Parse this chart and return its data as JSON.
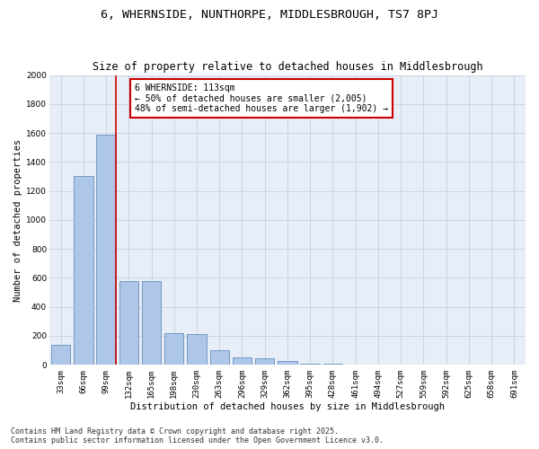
{
  "title": "6, WHERNSIDE, NUNTHORPE, MIDDLESBROUGH, TS7 8PJ",
  "subtitle": "Size of property relative to detached houses in Middlesbrough",
  "xlabel": "Distribution of detached houses by size in Middlesbrough",
  "ylabel": "Number of detached properties",
  "categories": [
    "33sqm",
    "66sqm",
    "99sqm",
    "132sqm",
    "165sqm",
    "198sqm",
    "230sqm",
    "263sqm",
    "296sqm",
    "329sqm",
    "362sqm",
    "395sqm",
    "428sqm",
    "461sqm",
    "494sqm",
    "527sqm",
    "559sqm",
    "592sqm",
    "625sqm",
    "658sqm",
    "691sqm"
  ],
  "values": [
    140,
    1300,
    1590,
    580,
    580,
    220,
    215,
    100,
    50,
    45,
    25,
    10,
    10,
    0,
    0,
    0,
    0,
    0,
    0,
    0,
    0
  ],
  "bar_color": "#aec6e8",
  "bar_edge_color": "#5080b0",
  "vline_color": "#cc0000",
  "annotation_text": "6 WHERNSIDE: 113sqm\n← 50% of detached houses are smaller (2,005)\n48% of semi-detached houses are larger (1,902) →",
  "annotation_box_color": "#cc0000",
  "ylim": [
    0,
    2000
  ],
  "yticks": [
    0,
    200,
    400,
    600,
    800,
    1000,
    1200,
    1400,
    1600,
    1800,
    2000
  ],
  "grid_color": "#c8d0dc",
  "bg_color": "#e8eef7",
  "footer_line1": "Contains HM Land Registry data © Crown copyright and database right 2025.",
  "footer_line2": "Contains public sector information licensed under the Open Government Licence v3.0.",
  "title_fontsize": 9.5,
  "subtitle_fontsize": 8.5,
  "axis_label_fontsize": 7.5,
  "tick_fontsize": 6.5,
  "annotation_fontsize": 7,
  "footer_fontsize": 6
}
